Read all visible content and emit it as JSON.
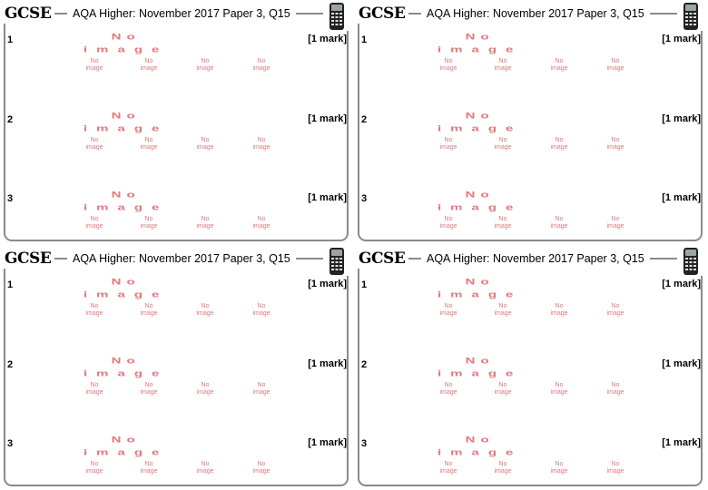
{
  "cards": [
    {
      "logo": "GCSE",
      "title": "AQA Higher: November 2017 Paper 3, Q15",
      "questions": [
        {
          "number": "1",
          "mark": "[1 mark]"
        },
        {
          "number": "2",
          "mark": "[1 mark]"
        },
        {
          "number": "3",
          "mark": "[1 mark]"
        }
      ]
    },
    {
      "logo": "GCSE",
      "title": "AQA Higher: November 2017 Paper 3, Q15",
      "questions": [
        {
          "number": "1",
          "mark": "[1 mark]"
        },
        {
          "number": "2",
          "mark": "[1 mark]"
        },
        {
          "number": "3",
          "mark": "[1 mark]"
        }
      ]
    },
    {
      "logo": "GCSE",
      "title": "AQA Higher: November 2017 Paper 3, Q15",
      "questions": [
        {
          "number": "1",
          "mark": "[1 mark]"
        },
        {
          "number": "2",
          "mark": "[1 mark]"
        },
        {
          "number": "3",
          "mark": "[1 mark]"
        }
      ]
    },
    {
      "logo": "GCSE",
      "title": "AQA Higher: November 2017 Paper 3, Q15",
      "questions": [
        {
          "number": "1",
          "mark": "[1 mark]"
        },
        {
          "number": "2",
          "mark": "[1 mark]"
        },
        {
          "number": "3",
          "mark": "[1 mark]"
        }
      ]
    }
  ],
  "placeholder": {
    "large_line1": "No",
    "large_line2": "image",
    "small_line1": "No",
    "small_line2": "image",
    "color": "#e0787d"
  },
  "icons": {
    "calculator": "calculator-icon"
  },
  "colors": {
    "frame": "#8a8a8a",
    "text": "#000000"
  }
}
